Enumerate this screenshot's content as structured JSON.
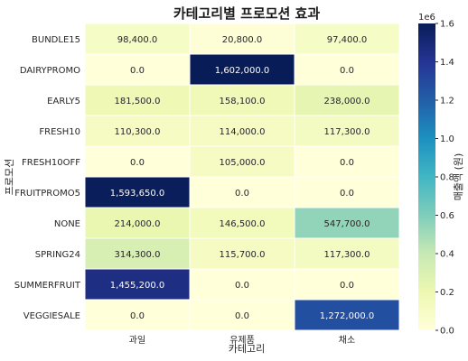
{
  "chart_data": {
    "type": "heatmap",
    "title": "카테고리별 프로모션 효과",
    "xlabel": "카테고리",
    "ylabel": "프로모션",
    "x_categories": [
      "과일",
      "유제품",
      "채소"
    ],
    "y_categories": [
      "BUNDLE15",
      "DAIRYPROMO",
      "EARLY5",
      "FRESH10",
      "FRESH10OFF",
      "FRUITPROMO5",
      "NONE",
      "SPRING24",
      "SUMMERFRUIT",
      "VEGGIESALE"
    ],
    "values": [
      [
        98400.0,
        20800.0,
        97400.0
      ],
      [
        0.0,
        1602000.0,
        0.0
      ],
      [
        181500.0,
        158100.0,
        238000.0
      ],
      [
        110300.0,
        114000.0,
        117300.0
      ],
      [
        0.0,
        105000.0,
        0.0
      ],
      [
        1593650.0,
        0.0,
        0.0
      ],
      [
        214000.0,
        146500.0,
        547700.0
      ],
      [
        314300.0,
        115700.0,
        117300.0
      ],
      [
        1455200.0,
        0.0,
        0.0
      ],
      [
        0.0,
        0.0,
        1272000.0
      ]
    ],
    "cell_labels": [
      [
        "98,400.0",
        "20,800.0",
        "97,400.0"
      ],
      [
        "0.0",
        "1,602,000.0",
        "0.0"
      ],
      [
        "181,500.0",
        "158,100.0",
        "238,000.0"
      ],
      [
        "110,300.0",
        "114,000.0",
        "117,300.0"
      ],
      [
        "0.0",
        "105,000.0",
        "0.0"
      ],
      [
        "1,593,650.0",
        "0.0",
        "0.0"
      ],
      [
        "214,000.0",
        "146,500.0",
        "547,700.0"
      ],
      [
        "314,300.0",
        "115,700.0",
        "117,300.0"
      ],
      [
        "1,455,200.0",
        "0.0",
        "0.0"
      ],
      [
        "0.0",
        "0.0",
        "1,272,000.0"
      ]
    ],
    "colorbar": {
      "label": "매출액 (원)",
      "multiplier_label": "1e6",
      "ticks": [
        0.0,
        0.2,
        0.4,
        0.6,
        0.8,
        1.0,
        1.2,
        1.4,
        1.6
      ],
      "tick_labels": [
        "0.0",
        "0.2",
        "0.4",
        "0.6",
        "0.8",
        "1.0",
        "1.2",
        "1.4",
        "1.6"
      ],
      "range": [
        0,
        1.6
      ],
      "colormap": "YlGnBu"
    }
  }
}
